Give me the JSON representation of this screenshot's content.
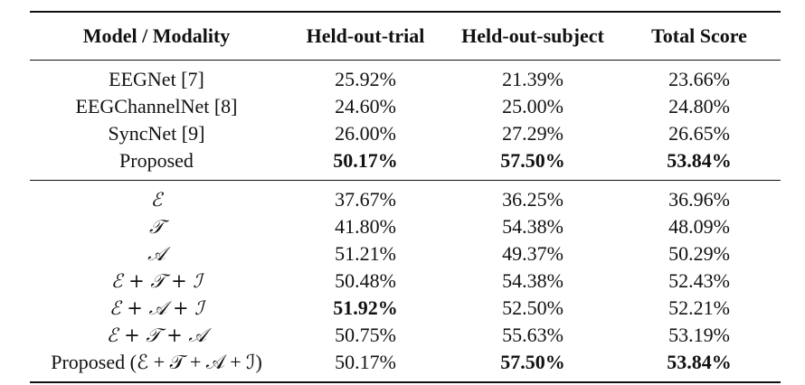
{
  "table": {
    "headers": [
      "Model / Modality",
      "Held-out-trial",
      "Held-out-subject",
      "Total Score"
    ],
    "group1": [
      {
        "model": "EEGNet [7]",
        "trial": "25.92%",
        "subject": "21.39%",
        "total": "23.66%",
        "bold": [
          false,
          false,
          false
        ]
      },
      {
        "model": "EEGChannelNet [8]",
        "trial": "24.60%",
        "subject": "25.00%",
        "total": "24.80%",
        "bold": [
          false,
          false,
          false
        ]
      },
      {
        "model": "SyncNet [9]",
        "trial": "26.00%",
        "subject": "27.29%",
        "total": "26.65%",
        "bold": [
          false,
          false,
          false
        ]
      },
      {
        "model": "Proposed",
        "trial": "50.17%",
        "subject": "57.50%",
        "total": "53.84%",
        "bold": [
          true,
          true,
          true
        ]
      }
    ],
    "group2": [
      {
        "model": "ℰ",
        "trial": "37.67%",
        "subject": "36.25%",
        "total": "36.96%",
        "bold": [
          false,
          false,
          false
        ]
      },
      {
        "model": "𝒯",
        "trial": "41.80%",
        "subject": "54.38%",
        "total": "48.09%",
        "bold": [
          false,
          false,
          false
        ]
      },
      {
        "model": "𝒜",
        "trial": "51.21%",
        "subject": "49.37%",
        "total": "50.29%",
        "bold": [
          false,
          false,
          false
        ]
      },
      {
        "model": "ℰ + 𝒯 + ℐ",
        "trial": "50.48%",
        "subject": "54.38%",
        "total": "52.43%",
        "bold": [
          false,
          false,
          false
        ]
      },
      {
        "model": "ℰ + 𝒜 + ℐ",
        "trial": "51.92%",
        "subject": "52.50%",
        "total": "52.21%",
        "bold": [
          true,
          false,
          false
        ]
      },
      {
        "model": "ℰ + 𝒯 + 𝒜",
        "trial": "50.75%",
        "subject": "55.63%",
        "total": "53.19%",
        "bold": [
          false,
          false,
          false
        ]
      },
      {
        "model": "Proposed (ℰ + 𝒯 + 𝒜 + ℐ)",
        "trial": "50.17%",
        "subject": "57.50%",
        "total": "53.84%",
        "bold": [
          false,
          true,
          true
        ]
      }
    ]
  }
}
